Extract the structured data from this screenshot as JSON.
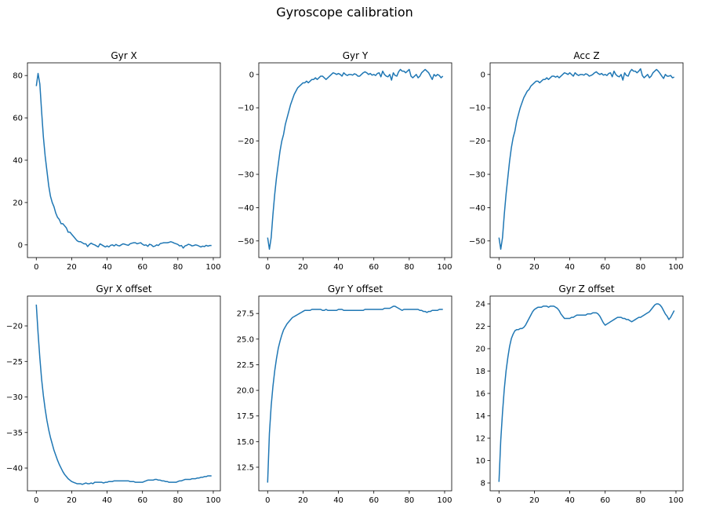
{
  "figure": {
    "title": "Gyroscope calibration",
    "line_color": "#1f77b4"
  },
  "chart_data": [
    {
      "type": "line",
      "title": "Gyr X",
      "xlabel": "",
      "ylabel": "",
      "xlim": [
        -5,
        104
      ],
      "ylim": [
        -6,
        86
      ],
      "xticks": [
        0,
        20,
        40,
        60,
        80,
        100
      ],
      "yticks": [
        0,
        20,
        40,
        60,
        80
      ],
      "ytick_labels": [
        "0",
        "20",
        "40",
        "60",
        "80"
      ],
      "series": [
        {
          "x_start": 0,
          "x_step": 1,
          "values": [
            75,
            81,
            76,
            63,
            51,
            42,
            35,
            28,
            23,
            20,
            18,
            15,
            13,
            12,
            10,
            10,
            9,
            8,
            6,
            6,
            5,
            4,
            3,
            2,
            1.5,
            1.5,
            1,
            0.5,
            0.5,
            -0.8,
            0.2,
            0.8,
            0.3,
            0,
            -0.5,
            -1,
            0.5,
            0,
            -0.5,
            -1,
            -0.5,
            -1,
            -0.2,
            0,
            -0.5,
            0.2,
            -0.3,
            -0.5,
            0,
            0.5,
            0.3,
            0,
            -0.2,
            0.5,
            0.8,
            1,
            1,
            0.5,
            0.8,
            1,
            0.3,
            -0.2,
            0,
            -0.7,
            0.3,
            0,
            -0.8,
            -0.6,
            0,
            -0.3,
            0.6,
            0.8,
            1,
            1,
            1,
            1.2,
            1.5,
            1.2,
            0.8,
            0.5,
            0.2,
            -0.5,
            -0.3,
            -1.5,
            -0.5,
            -0.2,
            0.3,
            0,
            -0.5,
            -0.3,
            0,
            -0.2,
            -0.6,
            -1,
            -0.6,
            -0.8,
            -0.2,
            -0.6,
            -0.3,
            -0.3
          ]
        }
      ]
    },
    {
      "type": "line",
      "title": "Gyr Y",
      "xlabel": "",
      "ylabel": "",
      "xlim": [
        -5,
        104
      ],
      "ylim": [
        -55,
        3.5
      ],
      "xticks": [
        0,
        20,
        40,
        60,
        80,
        100
      ],
      "yticks": [
        0,
        -10,
        -20,
        -30,
        -40,
        -50
      ],
      "ytick_labels": [
        "0",
        "−10",
        "−20",
        "−30",
        "−40",
        "−50"
      ],
      "series": [
        {
          "x_start": 0,
          "x_step": 1,
          "values": [
            -49,
            -52.5,
            -49,
            -42,
            -36,
            -31,
            -27,
            -23,
            -20,
            -18,
            -15,
            -13,
            -11,
            -9,
            -7.5,
            -6,
            -5,
            -4,
            -3.5,
            -3,
            -2.5,
            -2.5,
            -2,
            -2.5,
            -2,
            -1.5,
            -1.5,
            -1,
            -1.5,
            -1,
            -0.5,
            -0.5,
            -1,
            -1.5,
            -1,
            -0.5,
            0,
            0.5,
            0.3,
            0,
            0.3,
            0,
            -0.5,
            0.5,
            0,
            -0.3,
            0,
            0,
            -0.2,
            0.2,
            0,
            -0.5,
            -0.5,
            0,
            0.5,
            0.8,
            0.5,
            0,
            0.3,
            -0.2,
            0,
            -0.3,
            0.3,
            0.5,
            -0.7,
            1,
            0,
            -0.5,
            -0.7,
            0,
            -1.7,
            0.5,
            -0.3,
            -0.5,
            0.8,
            1.5,
            1,
            1,
            0.5,
            1,
            1.5,
            -0.5,
            -1,
            -0.5,
            0,
            -1,
            -0.5,
            0.5,
            1,
            1.5,
            1,
            0.5,
            -0.5,
            -1.5,
            0,
            -0.5,
            0,
            -0.3,
            -1,
            -0.5
          ]
        }
      ]
    },
    {
      "type": "line",
      "title": "Acc Z",
      "xlabel": "",
      "ylabel": "",
      "xlim": [
        -5,
        104
      ],
      "ylim": [
        -55,
        3.5
      ],
      "xticks": [
        0,
        20,
        40,
        60,
        80,
        100
      ],
      "yticks": [
        0,
        -10,
        -20,
        -30,
        -40,
        -50
      ],
      "ytick_labels": [
        "0",
        "−10",
        "−20",
        "−30",
        "−40",
        "−50"
      ],
      "series": [
        {
          "x_start": 0,
          "x_step": 1,
          "values": [
            -49,
            -52.5,
            -49,
            -42,
            -36,
            -31,
            -26,
            -22,
            -19,
            -17,
            -14,
            -12,
            -10,
            -8.5,
            -7,
            -6,
            -5,
            -4.5,
            -3.5,
            -3,
            -2.5,
            -2,
            -2,
            -2.5,
            -2,
            -1.5,
            -1.5,
            -1,
            -1.5,
            -1,
            -0.5,
            -0.5,
            -0.8,
            -0.5,
            -1,
            -0.5,
            0,
            0.5,
            0.3,
            0,
            0.5,
            0,
            -0.5,
            0.5,
            0,
            -0.3,
            0,
            0,
            -0.2,
            0.2,
            0,
            -0.5,
            -0.3,
            0,
            0.5,
            0.8,
            0.3,
            0,
            0.3,
            -0.2,
            0,
            -0.3,
            0.3,
            0.5,
            -0.7,
            1,
            0,
            -0.5,
            -0.7,
            0,
            -1.7,
            0.5,
            -0.3,
            -0.5,
            0.8,
            1.5,
            1,
            1,
            0.5,
            1,
            1.7,
            -0.3,
            -1,
            -0.5,
            0,
            -1,
            -0.5,
            0.5,
            1,
            1.5,
            1,
            0.3,
            -0.5,
            -1.2,
            0,
            -0.5,
            -0.5,
            -0.3,
            -1,
            -0.8
          ]
        }
      ]
    },
    {
      "type": "line",
      "title": "Gyr X offset",
      "xlabel": "",
      "ylabel": "",
      "xlim": [
        -5,
        104
      ],
      "ylim": [
        -43.2,
        -15.8
      ],
      "xticks": [
        0,
        20,
        40,
        60,
        80,
        100
      ],
      "yticks": [
        -20,
        -25,
        -30,
        -35,
        -40
      ],
      "ytick_labels": [
        "−20",
        "−25",
        "−30",
        "−35",
        "−40"
      ],
      "series": [
        {
          "x_start": 0,
          "x_step": 1,
          "values": [
            -17,
            -21,
            -24.5,
            -27.5,
            -29.8,
            -31.7,
            -33.3,
            -34.6,
            -35.7,
            -36.6,
            -37.5,
            -38.2,
            -38.9,
            -39.5,
            -40,
            -40.5,
            -40.9,
            -41.2,
            -41.5,
            -41.7,
            -41.9,
            -42,
            -42.1,
            -42.2,
            -42.2,
            -42.2,
            -42.3,
            -42.2,
            -42.1,
            -42.2,
            -42.2,
            -42.1,
            -42.2,
            -42,
            -42,
            -42,
            -42,
            -42,
            -42.1,
            -42,
            -42,
            -41.9,
            -41.9,
            -41.9,
            -41.8,
            -41.8,
            -41.8,
            -41.8,
            -41.8,
            -41.8,
            -41.8,
            -41.8,
            -41.8,
            -41.9,
            -41.9,
            -41.9,
            -42,
            -42,
            -42,
            -42,
            -42,
            -41.9,
            -41.8,
            -41.7,
            -41.7,
            -41.7,
            -41.7,
            -41.6,
            -41.6,
            -41.7,
            -41.7,
            -41.8,
            -41.8,
            -41.9,
            -41.9,
            -42,
            -42,
            -42,
            -42,
            -42,
            -41.9,
            -41.8,
            -41.8,
            -41.7,
            -41.6,
            -41.6,
            -41.6,
            -41.6,
            -41.5,
            -41.5,
            -41.5,
            -41.4,
            -41.4,
            -41.3,
            -41.3,
            -41.2,
            -41.2,
            -41.1,
            -41.1,
            -41.1
          ]
        }
      ]
    },
    {
      "type": "line",
      "title": "Gyr Y offset",
      "xlabel": "",
      "ylabel": "",
      "xlim": [
        -5,
        104
      ],
      "ylim": [
        10.2,
        29.2
      ],
      "xticks": [
        0,
        20,
        40,
        60,
        80,
        100
      ],
      "yticks": [
        12.5,
        15,
        17.5,
        20,
        22.5,
        25,
        27.5
      ],
      "ytick_labels": [
        "12.5",
        "15.0",
        "17.5",
        "20.0",
        "22.5",
        "25.0",
        "27.5"
      ],
      "series": [
        {
          "x_start": 0,
          "x_step": 1,
          "values": [
            11,
            15.8,
            18.5,
            20.4,
            21.9,
            23.1,
            24.1,
            24.8,
            25.4,
            25.9,
            26.2,
            26.5,
            26.7,
            26.9,
            27.1,
            27.2,
            27.3,
            27.4,
            27.5,
            27.6,
            27.7,
            27.8,
            27.8,
            27.8,
            27.8,
            27.9,
            27.9,
            27.9,
            27.9,
            27.9,
            27.9,
            27.8,
            27.8,
            27.9,
            27.8,
            27.8,
            27.8,
            27.8,
            27.8,
            27.8,
            27.9,
            27.9,
            27.9,
            27.8,
            27.8,
            27.8,
            27.8,
            27.8,
            27.8,
            27.8,
            27.8,
            27.8,
            27.8,
            27.8,
            27.8,
            27.9,
            27.9,
            27.9,
            27.9,
            27.9,
            27.9,
            27.9,
            27.9,
            27.9,
            27.9,
            27.9,
            28,
            28,
            28,
            28,
            28.1,
            28.2,
            28.2,
            28.1,
            28,
            27.9,
            27.8,
            27.9,
            27.9,
            27.9,
            27.9,
            27.9,
            27.9,
            27.9,
            27.9,
            27.9,
            27.8,
            27.8,
            27.7,
            27.7,
            27.6,
            27.7,
            27.7,
            27.8,
            27.8,
            27.8,
            27.8,
            27.9,
            27.9,
            27.9
          ]
        }
      ]
    },
    {
      "type": "line",
      "title": "Gyr Z offset",
      "xlabel": "",
      "ylabel": "",
      "xlim": [
        -5,
        104
      ],
      "ylim": [
        7.3,
        24.7
      ],
      "xticks": [
        0,
        20,
        40,
        60,
        80,
        100
      ],
      "yticks": [
        8,
        10,
        12,
        14,
        16,
        18,
        20,
        22,
        24
      ],
      "ytick_labels": [
        "8",
        "10",
        "12",
        "14",
        "16",
        "18",
        "20",
        "22",
        "24"
      ],
      "series": [
        {
          "x_start": 0,
          "x_step": 1,
          "values": [
            8.1,
            11.8,
            14.3,
            16.4,
            18,
            19.2,
            20.2,
            20.9,
            21.3,
            21.6,
            21.7,
            21.7,
            21.8,
            21.8,
            21.9,
            22.1,
            22.4,
            22.7,
            23,
            23.3,
            23.5,
            23.6,
            23.7,
            23.7,
            23.7,
            23.8,
            23.8,
            23.8,
            23.7,
            23.8,
            23.8,
            23.8,
            23.7,
            23.6,
            23.4,
            23.1,
            22.9,
            22.7,
            22.7,
            22.7,
            22.7,
            22.8,
            22.8,
            22.9,
            23,
            23,
            23,
            23,
            23,
            23,
            23.1,
            23.1,
            23.1,
            23.2,
            23.2,
            23.2,
            23.1,
            22.9,
            22.6,
            22.3,
            22.1,
            22.2,
            22.3,
            22.4,
            22.5,
            22.6,
            22.7,
            22.8,
            22.8,
            22.8,
            22.7,
            22.7,
            22.6,
            22.6,
            22.5,
            22.4,
            22.5,
            22.6,
            22.7,
            22.8,
            22.8,
            22.9,
            23,
            23.1,
            23.2,
            23.3,
            23.5,
            23.7,
            23.9,
            24,
            24,
            23.9,
            23.7,
            23.4,
            23.1,
            22.9,
            22.6,
            22.8,
            23.1,
            23.4
          ]
        }
      ]
    }
  ]
}
